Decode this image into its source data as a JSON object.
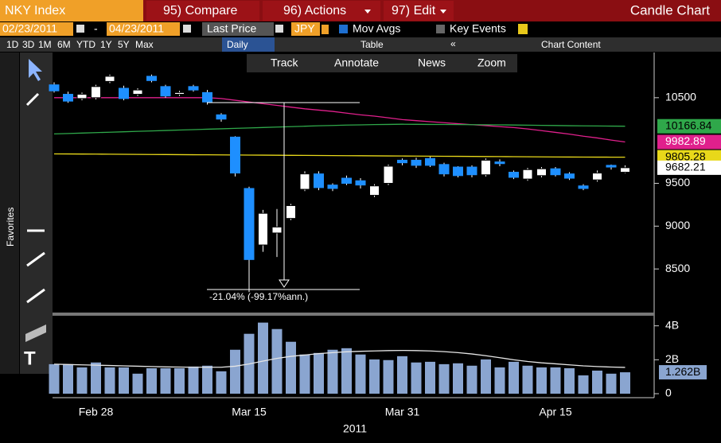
{
  "toolbar": {
    "ticker": "NKY Index",
    "compare": "95) Compare",
    "actions": "96) Actions",
    "edit": "97) Edit",
    "chart_title": "Candle Chart",
    "start_date": "02/23/2011",
    "date_separator": "-",
    "end_date": "04/23/2011",
    "field": "Last Price",
    "currency": "JPY",
    "mov_avgs": "Mov Avgs",
    "key_events": "Key Events",
    "periods": [
      "1D",
      "3D",
      "1M",
      "6M",
      "YTD",
      "1Y",
      "5Y",
      "Max"
    ],
    "frequency": "Daily",
    "table": "Table",
    "chart_content": "Chart Content",
    "tools": [
      "Track",
      "Annotate",
      "News",
      "Zoom"
    ],
    "favorites": "Favorites"
  },
  "chart_data": {
    "type": "candlestick",
    "x_label": "2011",
    "annotation": "-21.04% (-99.17%ann.)",
    "categories": [
      null,
      null,
      null,
      "Feb 28",
      null,
      null,
      null,
      null,
      null,
      null,
      null,
      null,
      null,
      null,
      "Mar 15",
      null,
      null,
      null,
      null,
      null,
      null,
      null,
      null,
      null,
      null,
      "Mar 31",
      null,
      null,
      null,
      null,
      null,
      null,
      null,
      null,
      null,
      null,
      "Apr 15",
      null,
      null,
      null,
      null,
      null
    ],
    "open": [
      10650,
      10540,
      10490,
      10500,
      10690,
      10610,
      10540,
      10750,
      10630,
      10540,
      10630,
      10560,
      10300,
      10040,
      9440,
      8780,
      8920,
      9090,
      9430,
      9610,
      9480,
      9560,
      9530,
      9360,
      9500,
      9770,
      9770,
      9790,
      9720,
      9690,
      9690,
      9600,
      9750,
      9630,
      9550,
      9590,
      9670,
      9610,
      9470,
      9540,
      9710,
      9630
    ],
    "high": [
      10680,
      10570,
      10560,
      10650,
      10770,
      10640,
      10610,
      10770,
      10650,
      10580,
      10650,
      10590,
      10320,
      10050,
      9460,
      9190,
      9200,
      9260,
      9640,
      9640,
      9500,
      9590,
      9560,
      9490,
      9720,
      9790,
      9800,
      9810,
      9740,
      9700,
      9710,
      9790,
      9780,
      9650,
      9680,
      9690,
      9690,
      9630,
      9490,
      9650,
      9720,
      9710
    ],
    "low": [
      10560,
      10440,
      10470,
      10480,
      10670,
      10470,
      10520,
      10680,
      10500,
      10520,
      10570,
      10420,
      10220,
      9580,
      8230,
      8700,
      8640,
      9070,
      9410,
      9420,
      9410,
      9480,
      9440,
      9340,
      9480,
      9710,
      9680,
      9690,
      9580,
      9570,
      9570,
      9580,
      9700,
      9550,
      9530,
      9570,
      9580,
      9540,
      9420,
      9520,
      9660,
      9620
    ],
    "close": [
      10580,
      10460,
      10540,
      10630,
      10750,
      10490,
      10590,
      10700,
      10520,
      10560,
      10590,
      10450,
      10250,
      9620,
      8610,
      9150,
      8990,
      9240,
      9610,
      9450,
      9440,
      9500,
      9480,
      9470,
      9700,
      9740,
      9710,
      9710,
      9610,
      9590,
      9600,
      9770,
      9730,
      9570,
      9660,
      9670,
      9600,
      9560,
      9440,
      9620,
      9690,
      9682.21
    ],
    "last_label": "9682.21",
    "up_color": "#ffffff",
    "down_color": "#1e8fff",
    "ylim": [
      8000,
      11000
    ],
    "yticks": [
      8500,
      9000,
      9500,
      10500
    ],
    "moving_averages": [
      {
        "color": "#e0208c",
        "last_label": "9982.89",
        "values": [
          10500,
          10500,
          10500,
          10500,
          10500,
          10500,
          10500,
          10500,
          10500,
          10500,
          10500,
          10500,
          10490,
          10470,
          10450,
          10430,
          10410,
          10390,
          10370,
          10355,
          10340,
          10320,
          10300,
          10285,
          10265,
          10244,
          10232,
          10220,
          10208,
          10196,
          10185,
          10174,
          10162,
          10151,
          10135,
          10115,
          10095,
          10075,
          10050,
          10030,
          10005,
          9982.89
        ]
      },
      {
        "color": "#2fa84a",
        "last_label": "10166.84",
        "values": [
          10077,
          10082,
          10087,
          10092,
          10097,
          10102,
          10107,
          10112,
          10117,
          10122,
          10127,
          10132,
          10137,
          10142,
          10147,
          10152,
          10157,
          10162,
          10167,
          10172,
          10176,
          10180,
          10183,
          10186,
          10188,
          10190,
          10189,
          10188,
          10187,
          10186,
          10185,
          10184,
          10183,
          10181,
          10179,
          10177,
          10175,
          10173,
          10171,
          10170,
          10168,
          10166.84
        ]
      },
      {
        "color": "#e8d81a",
        "last_label": "9805.28",
        "values": [
          9844,
          9843,
          9842,
          9841,
          9840,
          9839,
          9838,
          9837,
          9836,
          9835,
          9834,
          9833,
          9832,
          9831,
          9830,
          9829,
          9828,
          9827,
          9826,
          9825,
          9824,
          9823,
          9822,
          9821,
          9820,
          9819,
          9818,
          9817,
          9816,
          9815,
          9814,
          9813,
          9812,
          9811,
          9810,
          9809,
          9808,
          9807,
          9806.5,
          9806,
          9805.6,
          9805.28
        ]
      }
    ],
    "volume": {
      "color": "#8aa5d0",
      "last_label": "1.262B",
      "ylim": [
        0,
        4.5
      ],
      "yticks": [
        0,
        {
          "value": 2,
          "label": "2B"
        },
        {
          "value": 4,
          "label": "4B"
        }
      ],
      "values": [
        1.74,
        1.74,
        1.55,
        1.84,
        1.55,
        1.55,
        1.18,
        1.5,
        1.5,
        1.5,
        1.6,
        1.65,
        1.32,
        2.59,
        3.53,
        4.19,
        3.81,
        3.06,
        2.31,
        2.4,
        2.59,
        2.68,
        2.31,
        2.02,
        1.98,
        2.21,
        1.84,
        1.88,
        1.74,
        1.79,
        1.65,
        2.02,
        1.55,
        1.88,
        1.65,
        1.55,
        1.55,
        1.5,
        1.08,
        1.36,
        1.18,
        1.262
      ],
      "average": {
        "color": "#e6e6e6",
        "values": [
          1.74,
          1.72,
          1.7,
          1.68,
          1.66,
          1.64,
          1.62,
          1.6,
          1.58,
          1.57,
          1.56,
          1.56,
          1.56,
          1.62,
          1.75,
          1.92,
          2.08,
          2.2,
          2.28,
          2.36,
          2.42,
          2.47,
          2.5,
          2.52,
          2.54,
          2.55,
          2.54,
          2.52,
          2.48,
          2.42,
          2.34,
          2.24,
          2.12,
          2.0,
          1.9,
          1.82,
          1.76,
          1.7,
          1.64,
          1.6,
          1.57,
          1.55
        ]
      }
    }
  }
}
